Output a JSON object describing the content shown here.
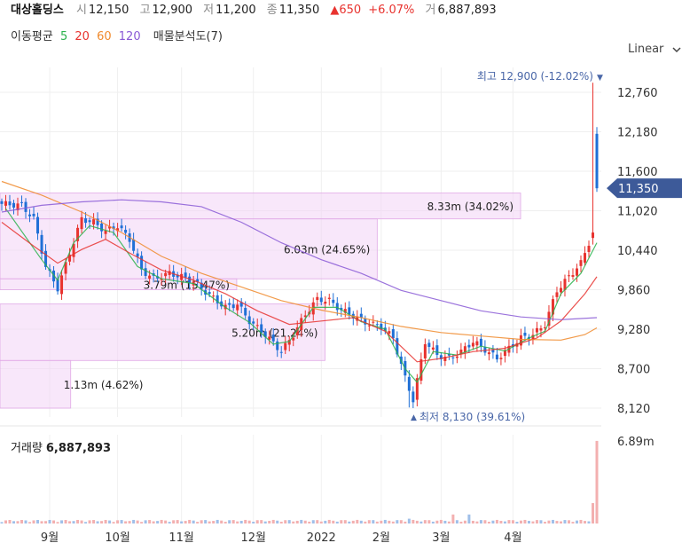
{
  "header": {
    "name": "대상홀딩스",
    "open_label": "시",
    "open": "12,150",
    "high_label": "고",
    "high": "12,900",
    "low_label": "저",
    "low": "11,200",
    "close_label": "종",
    "close": "11,350",
    "change": "▲650",
    "change_pct": "+6.07%",
    "volume_label": "거",
    "volume": "6,887,893"
  },
  "ma_legend": {
    "title": "이동평균",
    "periods": [
      {
        "label": "5",
        "color": "#2bb24c"
      },
      {
        "label": "20",
        "color": "#e8332f"
      },
      {
        "label": "60",
        "color": "#f08a2c"
      },
      {
        "label": "120",
        "color": "#8a5ad6"
      }
    ],
    "volume_profile_label": "매물분석도(7)"
  },
  "scale_toggle": "Linear",
  "colors": {
    "up": "#e8332f",
    "down": "#1f6fd6",
    "profile": "#f3d3f5",
    "profile_border": "#e0a8e6"
  },
  "chart_data": {
    "type": "candlestick",
    "y_ticks": [
      "12,760",
      "12,180",
      "11,600",
      "11,020",
      "10,440",
      "9,860",
      "9,280",
      "8,700",
      "8,120"
    ],
    "y_tick_values": [
      12760,
      12180,
      11600,
      11020,
      10440,
      9860,
      9280,
      8700,
      8120
    ],
    "ylim": [
      8000,
      13000
    ],
    "x_ticks": [
      "9월",
      "10월",
      "11월",
      "12월",
      "2022",
      "2월",
      "3월",
      "4월"
    ],
    "x_tick_index": [
      12,
      29,
      45,
      63,
      80,
      95,
      110,
      128
    ],
    "n_bars": 150,
    "current_price": "11,350",
    "current_price_value": 11350,
    "max_label": "최고 12,900 (-12.02%)",
    "max_value": 12900,
    "max_index": 148,
    "min_label": "최저 8,130 (39.61%)",
    "min_value": 8130,
    "min_index": 102,
    "price_path": [
      [
        0,
        11120
      ],
      [
        5,
        11100
      ],
      [
        8,
        10900
      ],
      [
        11,
        10200
      ],
      [
        14,
        9880
      ],
      [
        17,
        10400
      ],
      [
        20,
        10900
      ],
      [
        23,
        10850
      ],
      [
        26,
        10720
      ],
      [
        29,
        10800
      ],
      [
        32,
        10600
      ],
      [
        35,
        10150
      ],
      [
        38,
        10020
      ],
      [
        42,
        10100
      ],
      [
        45,
        10050
      ],
      [
        48,
        9980
      ],
      [
        52,
        9780
      ],
      [
        56,
        9600
      ],
      [
        59,
        9650
      ],
      [
        62,
        9400
      ],
      [
        66,
        9200
      ],
      [
        70,
        8950
      ],
      [
        73,
        9200
      ],
      [
        76,
        9500
      ],
      [
        79,
        9720
      ],
      [
        82,
        9700
      ],
      [
        85,
        9560
      ],
      [
        88,
        9480
      ],
      [
        91,
        9380
      ],
      [
        95,
        9320
      ],
      [
        98,
        9150
      ],
      [
        101,
        8560
      ],
      [
        103,
        8240
      ],
      [
        106,
        9100
      ],
      [
        109,
        8900
      ],
      [
        112,
        8850
      ],
      [
        115,
        8950
      ],
      [
        118,
        9100
      ],
      [
        121,
        8980
      ],
      [
        124,
        8850
      ],
      [
        127,
        9000
      ],
      [
        130,
        9150
      ],
      [
        133,
        9200
      ],
      [
        136,
        9350
      ],
      [
        139,
        9850
      ],
      [
        142,
        10050
      ],
      [
        145,
        10250
      ],
      [
        147,
        10550
      ],
      [
        148,
        12150
      ],
      [
        149,
        11350
      ]
    ],
    "ma": {
      "ma5": [
        [
          1,
          11050
        ],
        [
          10,
          10300
        ],
        [
          14,
          10000
        ],
        [
          18,
          10550
        ],
        [
          22,
          10800
        ],
        [
          28,
          10700
        ],
        [
          34,
          10200
        ],
        [
          40,
          10020
        ],
        [
          48,
          9950
        ],
        [
          56,
          9600
        ],
        [
          62,
          9380
        ],
        [
          68,
          9060
        ],
        [
          72,
          9100
        ],
        [
          78,
          9600
        ],
        [
          84,
          9600
        ],
        [
          90,
          9390
        ],
        [
          96,
          9280
        ],
        [
          101,
          8700
        ],
        [
          104,
          8500
        ],
        [
          108,
          8950
        ],
        [
          114,
          8900
        ],
        [
          120,
          9030
        ],
        [
          126,
          8960
        ],
        [
          132,
          9150
        ],
        [
          136,
          9250
        ],
        [
          140,
          9800
        ],
        [
          145,
          10100
        ],
        [
          149,
          10550
        ]
      ],
      "ma20": [
        [
          0,
          10850
        ],
        [
          8,
          10500
        ],
        [
          14,
          10250
        ],
        [
          20,
          10450
        ],
        [
          26,
          10600
        ],
        [
          32,
          10400
        ],
        [
          40,
          10150
        ],
        [
          48,
          10000
        ],
        [
          56,
          9800
        ],
        [
          64,
          9550
        ],
        [
          72,
          9350
        ],
        [
          80,
          9400
        ],
        [
          88,
          9450
        ],
        [
          96,
          9250
        ],
        [
          104,
          8800
        ],
        [
          110,
          8850
        ],
        [
          118,
          8950
        ],
        [
          126,
          9000
        ],
        [
          134,
          9150
        ],
        [
          140,
          9400
        ],
        [
          146,
          9800
        ],
        [
          149,
          10050
        ]
      ],
      "ma60": [
        [
          0,
          11450
        ],
        [
          10,
          11250
        ],
        [
          20,
          11000
        ],
        [
          30,
          10700
        ],
        [
          40,
          10350
        ],
        [
          50,
          10100
        ],
        [
          60,
          9900
        ],
        [
          70,
          9700
        ],
        [
          80,
          9560
        ],
        [
          90,
          9450
        ],
        [
          100,
          9320
        ],
        [
          110,
          9230
        ],
        [
          120,
          9180
        ],
        [
          130,
          9130
        ],
        [
          140,
          9120
        ],
        [
          146,
          9200
        ],
        [
          149,
          9300
        ]
      ],
      "ma120": [
        [
          0,
          11000
        ],
        [
          10,
          11100
        ],
        [
          20,
          11150
        ],
        [
          30,
          11180
        ],
        [
          40,
          11150
        ],
        [
          50,
          11080
        ],
        [
          60,
          10850
        ],
        [
          70,
          10550
        ],
        [
          80,
          10300
        ],
        [
          90,
          10100
        ],
        [
          100,
          9850
        ],
        [
          110,
          9700
        ],
        [
          120,
          9550
        ],
        [
          130,
          9460
        ],
        [
          140,
          9420
        ],
        [
          149,
          9450
        ]
      ]
    },
    "volume_profile": [
      {
        "price_low": 10900,
        "price_high": 11280,
        "label": "8.33m (34.02%)",
        "pct": 34.02
      },
      {
        "price_low": 10020,
        "price_high": 10900,
        "label": "6.03m (24.65%)",
        "pct": 24.65
      },
      {
        "price_low": 9860,
        "price_high": 10020,
        "label": "3.79m (15.47%)",
        "pct": 15.47
      },
      {
        "price_low": 8820,
        "price_high": 9650,
        "label": "5.20m (21.24%)",
        "pct": 21.24
      },
      {
        "price_low": 8120,
        "price_high": 8820,
        "label": "1.13m (4.62%)",
        "pct": 4.62
      }
    ],
    "volume": {
      "title": "거래량",
      "value": "6,887,893",
      "tick": "6.89m",
      "tick_value": 6890000,
      "max_value": 7400000
    }
  }
}
